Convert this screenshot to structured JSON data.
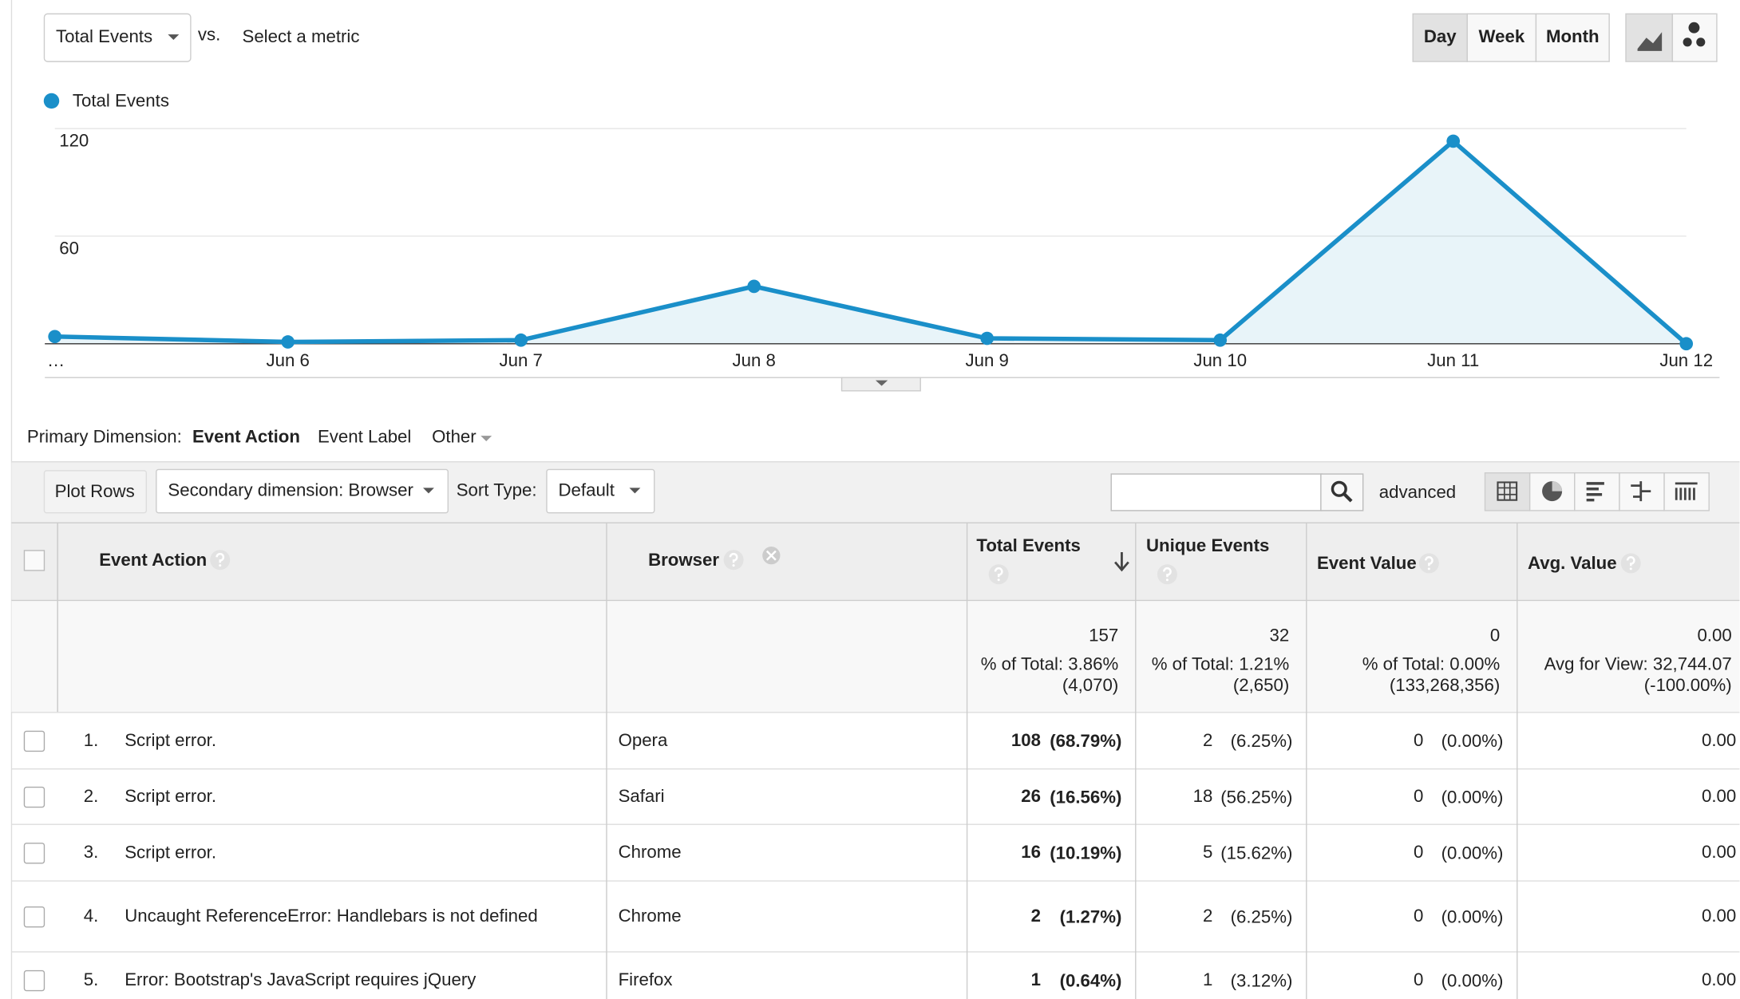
{
  "toolbar": {
    "metric": "Total Events",
    "vs": "vs.",
    "select_metric": "Select a metric",
    "periods": [
      "Day",
      "Week",
      "Month"
    ]
  },
  "chart_data": {
    "type": "line",
    "categories": [
      "…",
      "Jun 6",
      "Jun 7",
      "Jun 8",
      "Jun 9",
      "Jun 10",
      "Jun 11",
      "Jun 12"
    ],
    "series": [
      {
        "name": "Total Events",
        "color": "#1a8fc9",
        "values": [
          4,
          1,
          2,
          32,
          3,
          2,
          113,
          0
        ]
      }
    ],
    "ylim": [
      0,
      120
    ],
    "yticks": [
      60,
      120
    ],
    "grid": true
  },
  "dimension": {
    "label": "Primary Dimension:",
    "options": [
      "Event Action",
      "Event Label",
      "Other"
    ]
  },
  "controls": {
    "plot_rows": "Plot Rows",
    "secondary": "Secondary dimension: Browser",
    "sort_label": "Sort Type:",
    "sort": "Default",
    "advanced": "advanced"
  },
  "table": {
    "headers": [
      "Event Action",
      "Browser",
      "Total Events",
      "Unique Events",
      "Event Value",
      "Avg. Value"
    ],
    "totals": [
      [
        "157",
        "% of Total: 3.86%",
        "(4,070)"
      ],
      [
        "32",
        "% of Total: 1.21%",
        "(2,650)"
      ],
      [
        "0",
        "% of Total: 0.00%",
        "(133,268,356)"
      ],
      [
        "0.00",
        "Avg for View: 32,744.07",
        "(-100.00%)"
      ]
    ],
    "rows": [
      {
        "index": "1.",
        "action": "Script error.",
        "browser": "Opera",
        "cells": [
          [
            "108",
            "(68.79%)"
          ],
          [
            "2",
            "(6.25%)"
          ],
          [
            "0",
            "(0.00%)"
          ],
          [
            "0.00"
          ]
        ]
      },
      {
        "index": "2.",
        "action": "Script error.",
        "browser": "Safari",
        "cells": [
          [
            "26",
            "(16.56%)"
          ],
          [
            "18",
            "(56.25%)"
          ],
          [
            "0",
            "(0.00%)"
          ],
          [
            "0.00"
          ]
        ]
      },
      {
        "index": "3.",
        "action": "Script error.",
        "browser": "Chrome",
        "cells": [
          [
            "16",
            "(10.19%)"
          ],
          [
            "5",
            "(15.62%)"
          ],
          [
            "0",
            "(0.00%)"
          ],
          [
            "0.00"
          ]
        ]
      },
      {
        "index": "4.",
        "action": "Uncaught ReferenceError: Handlebars is not defined",
        "browser": "Chrome",
        "cells": [
          [
            "2",
            "(1.27%)"
          ],
          [
            "2",
            "(6.25%)"
          ],
          [
            "0",
            "(0.00%)"
          ],
          [
            "0.00"
          ]
        ]
      },
      {
        "index": "5.",
        "action": "Error: Bootstrap's JavaScript requires jQuery",
        "browser": "Firefox",
        "cells": [
          [
            "1",
            "(0.64%)"
          ],
          [
            "1",
            "(3.12%)"
          ],
          [
            "0",
            "(0.00%)"
          ],
          [
            "0.00"
          ]
        ]
      }
    ]
  }
}
